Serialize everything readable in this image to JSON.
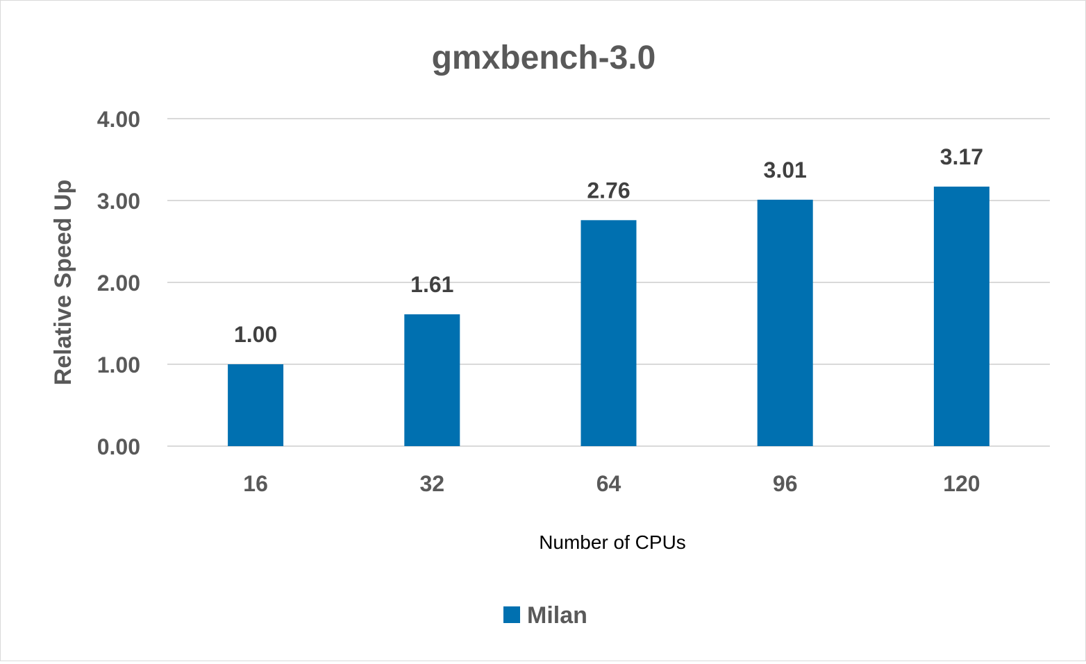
{
  "chart_data": {
    "type": "bar",
    "title": "gmxbench-3.0",
    "xlabel": "Number of CPUs",
    "ylabel": "Relative Speed Up",
    "categories": [
      "16",
      "32",
      "64",
      "96",
      "120"
    ],
    "series": [
      {
        "name": "Milan",
        "color": "#0070b0",
        "values": [
          1.0,
          1.61,
          2.76,
          3.01,
          3.17
        ],
        "value_labels": [
          "1.00",
          "1.61",
          "2.76",
          "3.01",
          "3.17"
        ]
      }
    ],
    "ylim": [
      0,
      4
    ],
    "yticks": [
      "0.00",
      "1.00",
      "2.00",
      "3.00",
      "4.00"
    ],
    "grid": true,
    "legend_position": "bottom"
  }
}
